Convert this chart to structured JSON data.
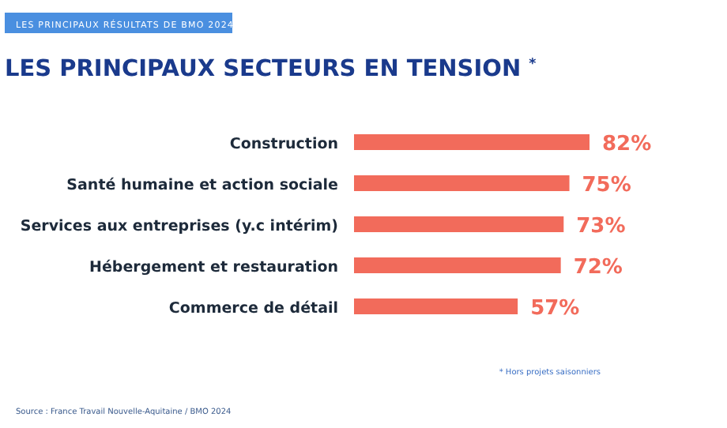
{
  "chart_data": {
    "type": "bar",
    "orientation": "horizontal",
    "subtitle": "LES PRINCIPAUX RÉSULTATS DE BMO 2024",
    "title": "LES PRINCIPAUX SECTEURS EN TENSION $^{*}$",
    "categories": [
      "Construction",
      "Santé humaine et action sociale",
      "Services aux entreprises (y.c intérim)",
      "Hébergement et restauration",
      "Commerce de détail"
    ],
    "values": [
      82,
      75,
      73,
      72,
      57
    ],
    "value_labels": [
      "82%",
      "75%",
      "73%",
      "72%",
      "57%"
    ],
    "color": "#f26b5b",
    "annotations": [
      "* Hors projets saisonniers",
      "Source : France Travail Nouvelle-Aquitaine / BMO 2024"
    ]
  }
}
